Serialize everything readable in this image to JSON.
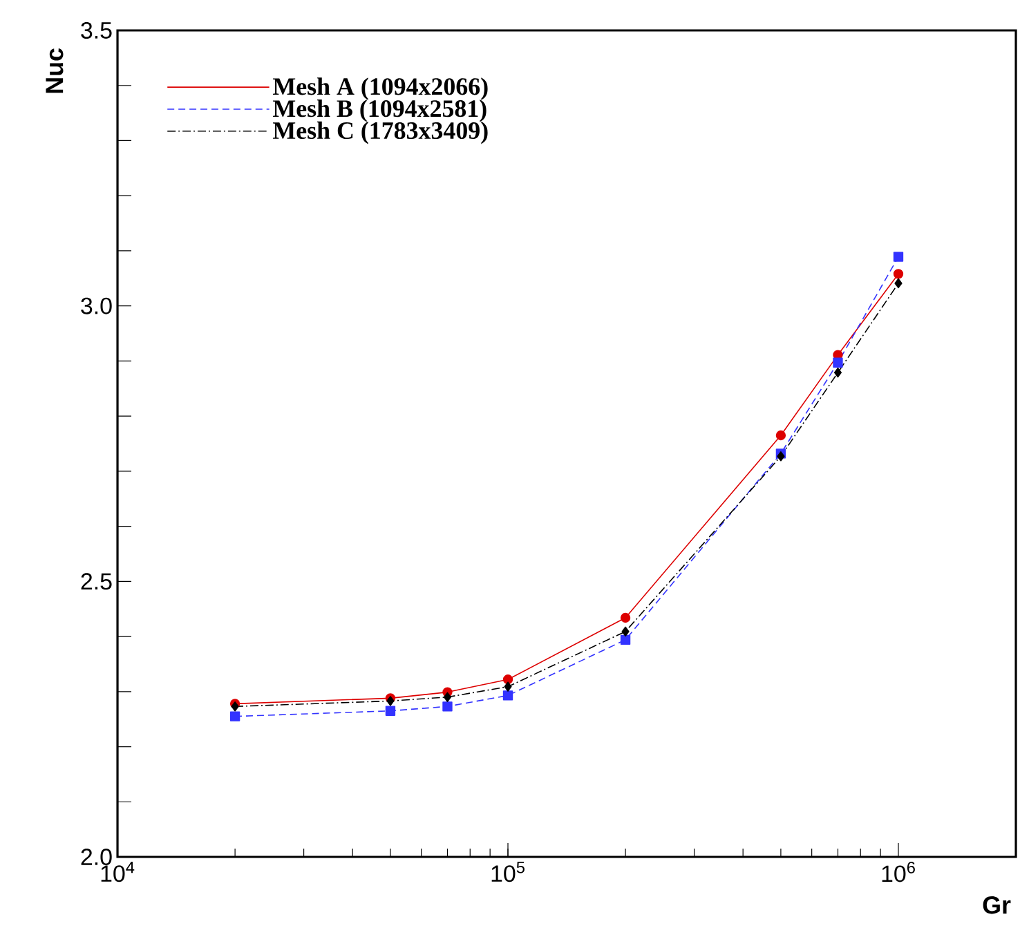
{
  "chart_data": {
    "type": "line",
    "xlabel": "Gr",
    "ylabel": "Nuc",
    "x": [
      20000,
      50000,
      70000,
      100000,
      200000,
      500000,
      700000,
      1000000
    ],
    "series": [
      {
        "name": "Mesh A (1094x2066)",
        "color": "#dd0000",
        "marker": "circle",
        "line_style": "solid",
        "values": [
          2.278,
          2.288,
          2.299,
          2.322,
          2.434,
          2.765,
          2.911,
          3.058
        ]
      },
      {
        "name": "Mesh B (1094x2581)",
        "color": "#3333ff",
        "marker": "square",
        "line_style": "dashed",
        "values": [
          2.255,
          2.265,
          2.273,
          2.293,
          2.394,
          2.732,
          2.897,
          3.089
        ]
      },
      {
        "name": "Mesh C (1783x3409)",
        "color": "#000000",
        "marker": "diamond",
        "line_style": "dashdot",
        "values": [
          2.273,
          2.283,
          2.29,
          2.309,
          2.409,
          2.727,
          2.879,
          3.041
        ]
      }
    ],
    "log": "x",
    "xlim": [
      10000,
      2000000
    ],
    "xticks": [
      {
        "value": 10000,
        "label": "10$^{4}$"
      },
      {
        "value": 100000,
        "label": "10$^{5}$"
      },
      {
        "value": 1000000,
        "label": "10$^{6}$"
      }
    ],
    "ylim": [
      2.0,
      3.5
    ],
    "yticks": [
      {
        "value": 2.0,
        "label": "2.0"
      },
      {
        "value": 2.1,
        "label": null
      },
      {
        "value": 2.2,
        "label": null
      },
      {
        "value": 2.3,
        "label": null
      },
      {
        "value": 2.4,
        "label": null
      },
      {
        "value": 2.5,
        "label": "2.5"
      },
      {
        "value": 2.6,
        "label": null
      },
      {
        "value": 2.7,
        "label": null
      },
      {
        "value": 2.8,
        "label": null
      },
      {
        "value": 2.9,
        "label": null
      },
      {
        "value": 3.0,
        "label": "3.0"
      },
      {
        "value": 3.1,
        "label": null
      },
      {
        "value": 3.2,
        "label": null
      },
      {
        "value": 3.3,
        "label": null
      },
      {
        "value": 3.4,
        "label": null
      },
      {
        "value": 3.5,
        "label": "3.5"
      }
    ],
    "grid": false,
    "legend": "top left"
  }
}
